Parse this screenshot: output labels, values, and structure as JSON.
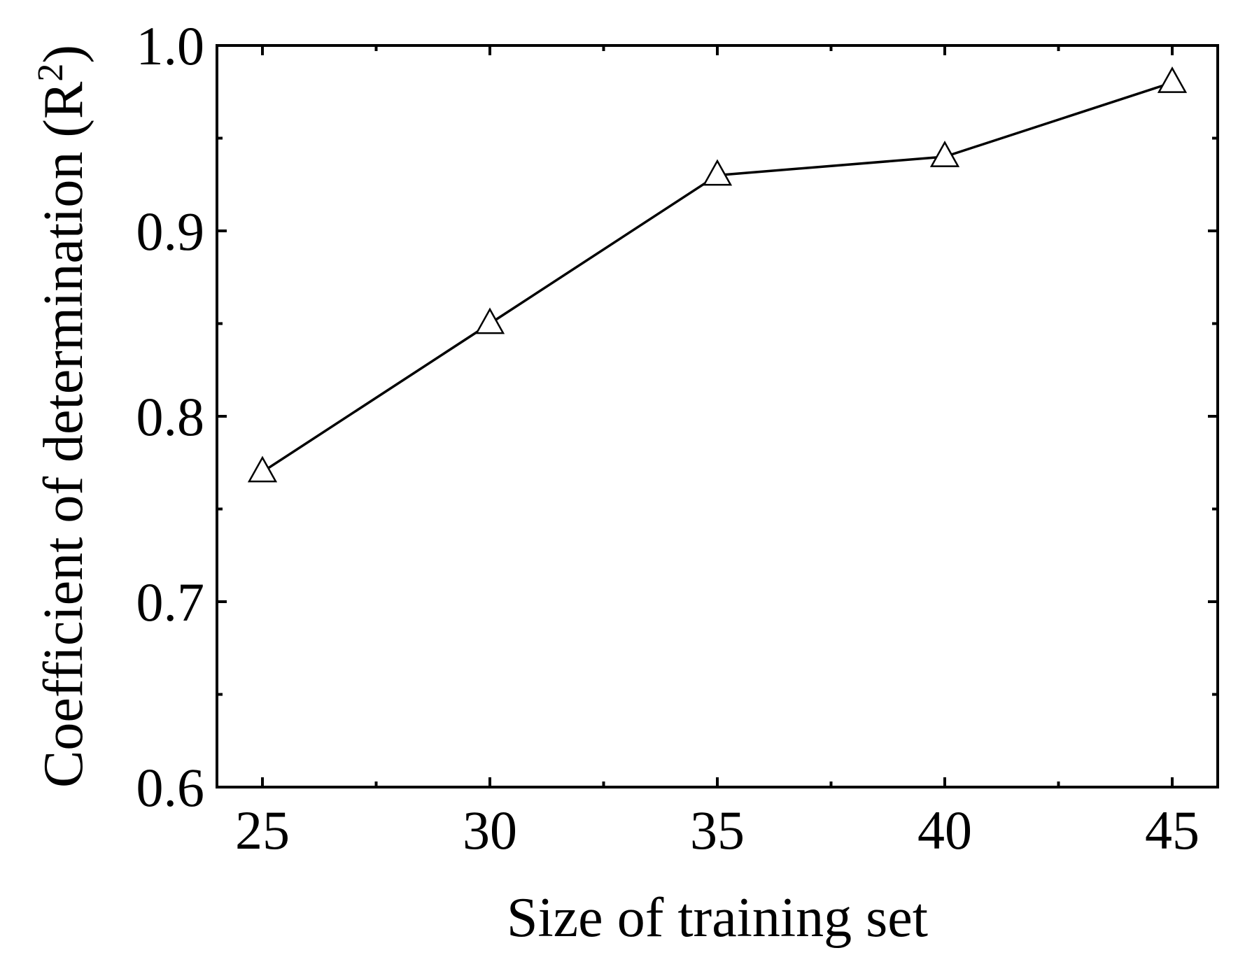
{
  "chart_data": {
    "type": "line",
    "title": "",
    "xlabel": "Size of training set",
    "ylabel": {
      "main": "Coefficient of determination (R",
      "superscript": "2",
      "close": ")"
    },
    "x": [
      25,
      30,
      35,
      40,
      45
    ],
    "series": [
      {
        "values": [
          0.77,
          0.85,
          0.93,
          0.94,
          0.98
        ],
        "marker": "open-triangle",
        "color": "#000000"
      }
    ],
    "xlim": [
      24,
      46
    ],
    "ylim": [
      0.6,
      1.0
    ],
    "x_major_ticks": [
      25,
      30,
      35,
      40,
      45
    ],
    "x_tick_labels": [
      "25",
      "30",
      "35",
      "40",
      "45"
    ],
    "x_minor_ticks": [
      27.5,
      32.5,
      37.5,
      42.5
    ],
    "y_major_ticks": [
      0.6,
      0.7,
      0.8,
      0.9,
      1.0
    ],
    "y_tick_labels": [
      "0.6",
      "0.7",
      "0.8",
      "0.9",
      "1.0"
    ],
    "y_minor_ticks": [
      0.65,
      0.75,
      0.85,
      0.95
    ],
    "grid": false,
    "legend": "none"
  }
}
